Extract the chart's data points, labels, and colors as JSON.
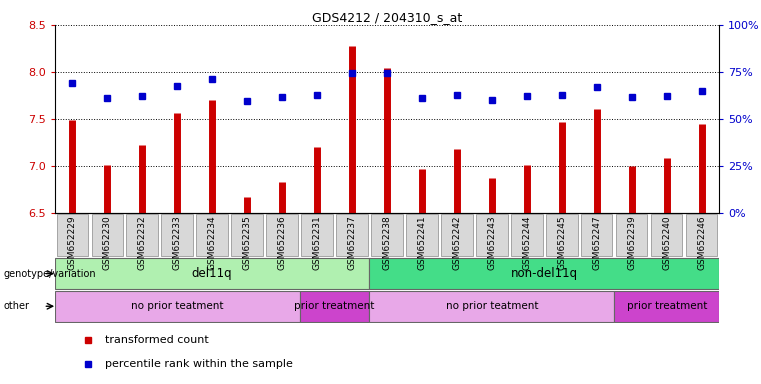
{
  "title": "GDS4212 / 204310_s_at",
  "samples": [
    "GSM652229",
    "GSM652230",
    "GSM652232",
    "GSM652233",
    "GSM652234",
    "GSM652235",
    "GSM652236",
    "GSM652231",
    "GSM652237",
    "GSM652238",
    "GSM652241",
    "GSM652242",
    "GSM652243",
    "GSM652244",
    "GSM652245",
    "GSM652247",
    "GSM652239",
    "GSM652240",
    "GSM652246"
  ],
  "red_values": [
    7.49,
    7.01,
    7.22,
    7.56,
    7.7,
    6.67,
    6.83,
    7.2,
    8.28,
    8.04,
    6.97,
    7.18,
    6.87,
    7.01,
    7.47,
    7.61,
    7.0,
    7.09,
    7.45
  ],
  "blue_values": [
    7.88,
    7.72,
    7.74,
    7.85,
    7.93,
    7.69,
    7.73,
    7.76,
    7.99,
    7.99,
    7.72,
    7.76,
    7.7,
    7.74,
    7.76,
    7.84,
    7.73,
    7.74,
    7.8
  ],
  "ylim_left": [
    6.5,
    8.5
  ],
  "yticks_left": [
    6.5,
    7.0,
    7.5,
    8.0,
    8.5
  ],
  "yticks_right_vals": [
    0,
    25,
    50,
    75,
    100
  ],
  "bar_color": "#cc0000",
  "dot_color": "#0000cc",
  "bar_bottom": 6.5,
  "genotype_groups": [
    {
      "label": "del11q",
      "start": 0,
      "end": 9,
      "color": "#b0f0b0"
    },
    {
      "label": "non-del11q",
      "start": 9,
      "end": 19,
      "color": "#44dd88"
    }
  ],
  "treatment_groups": [
    {
      "label": "no prior teatment",
      "start": 0,
      "end": 7,
      "color": "#e8a8e8"
    },
    {
      "label": "prior treatment",
      "start": 7,
      "end": 9,
      "color": "#cc44cc"
    },
    {
      "label": "no prior teatment",
      "start": 9,
      "end": 16,
      "color": "#e8a8e8"
    },
    {
      "label": "prior treatment",
      "start": 16,
      "end": 19,
      "color": "#cc44cc"
    }
  ],
  "legend_items": [
    {
      "label": "transformed count",
      "color": "#cc0000"
    },
    {
      "label": "percentile rank within the sample",
      "color": "#0000cc"
    }
  ],
  "ylabel_left_color": "#cc0000",
  "ylabel_right_color": "#0000cc",
  "background_color": "#ffffff",
  "plot_bg_color": "#ffffff",
  "xtick_bg_color": "#d8d8d8"
}
